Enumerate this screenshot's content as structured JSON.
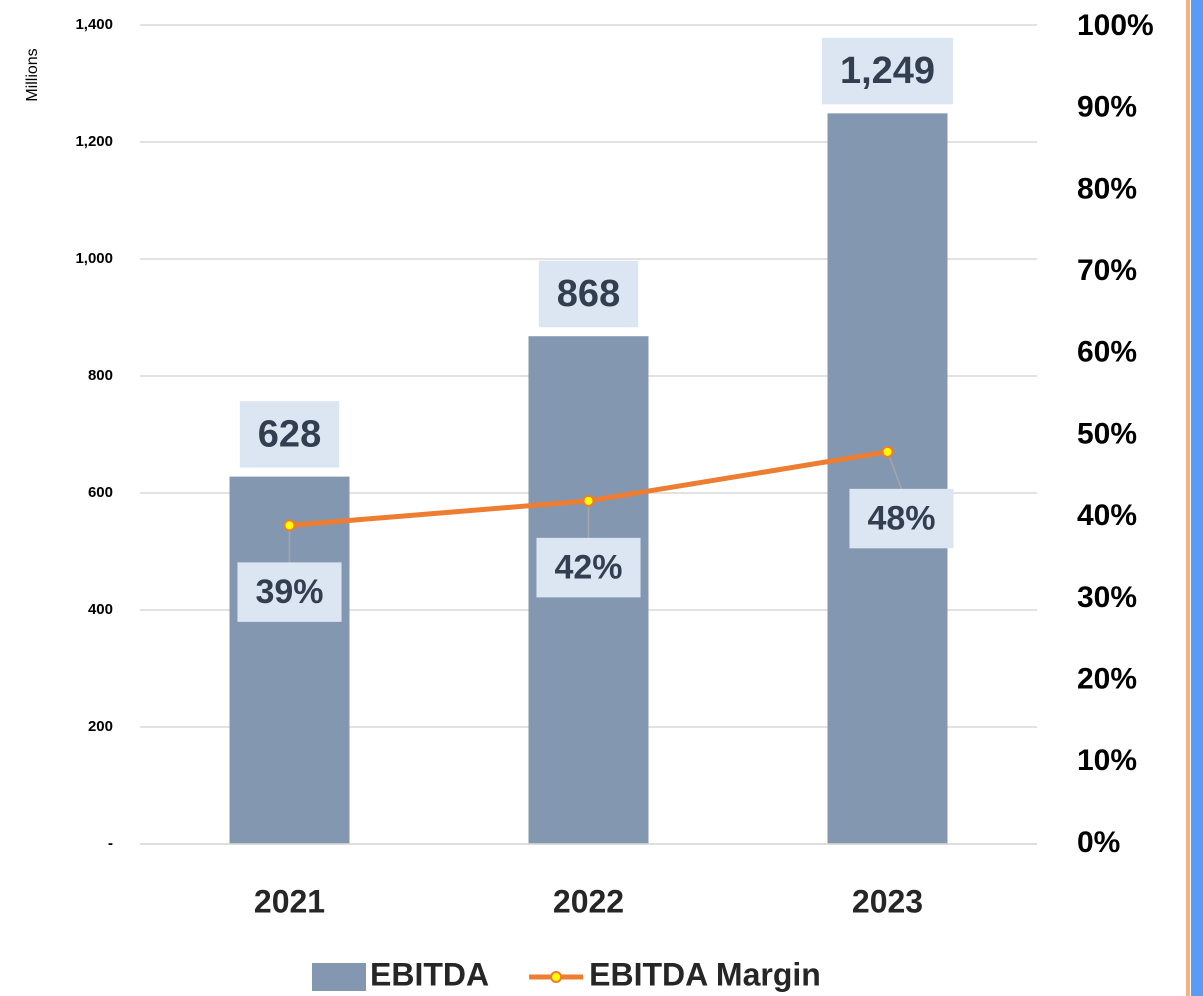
{
  "chart_data": {
    "type": "bar-line",
    "y_axis_label": "Millions",
    "categories": [
      "2021",
      "2022",
      "2023"
    ],
    "series": [
      {
        "name": "EBITDA",
        "type": "bar",
        "color": "#8497b0",
        "values": [
          628,
          868,
          1249
        ],
        "value_labels": [
          "628",
          "868",
          "1,249"
        ]
      },
      {
        "name": "EBITDA Margin",
        "type": "line",
        "axis": "y2",
        "color": "#ed7d31",
        "marker_color": "#ffff00",
        "values": [
          39,
          42,
          48
        ],
        "value_labels": [
          "39%",
          "42%",
          "48%"
        ]
      }
    ],
    "ylim": [
      0,
      1400
    ],
    "yticks": [
      {
        "value": 0,
        "label": "-"
      },
      200,
      400,
      600,
      800,
      {
        "value": 1000,
        "label": "1,000"
      },
      {
        "value": 1200,
        "label": "1,200"
      },
      {
        "value": 1400,
        "label": "1,400"
      }
    ],
    "y2lim": [
      0,
      100
    ],
    "y2ticks": [
      {
        "value": 0,
        "label": "0%"
      },
      {
        "value": 10,
        "label": "10%"
      },
      {
        "value": 20,
        "label": "20%"
      },
      {
        "value": 30,
        "label": "30%"
      },
      {
        "value": 40,
        "label": "40%"
      },
      {
        "value": 50,
        "label": "50%"
      },
      {
        "value": 60,
        "label": "60%"
      },
      {
        "value": 70,
        "label": "70%"
      },
      {
        "value": 80,
        "label": "80%"
      },
      {
        "value": 90,
        "label": "90%"
      },
      {
        "value": 100,
        "label": "100%"
      }
    ],
    "grid": true,
    "legend": "bottom"
  }
}
